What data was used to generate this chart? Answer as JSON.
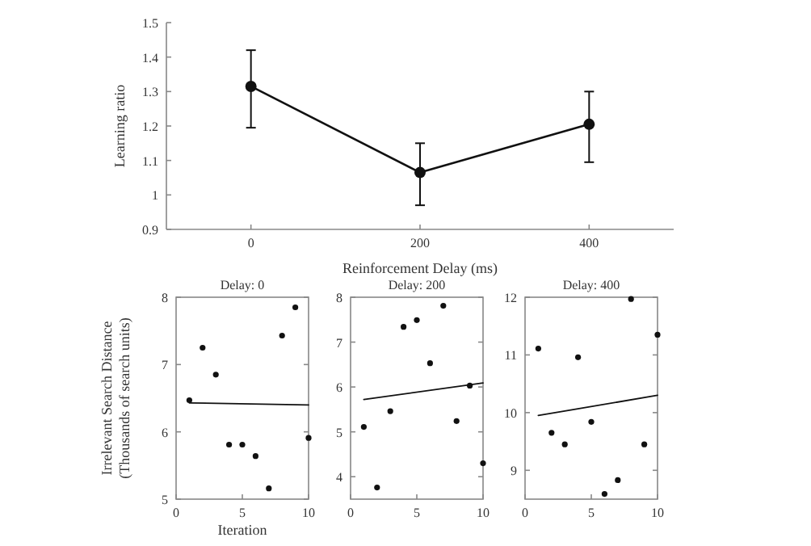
{
  "chart_data": [
    {
      "type": "line",
      "xlabel": "Reinforcement Delay (ms)",
      "ylabel": "Learning ratio",
      "x": [
        0,
        200,
        400
      ],
      "xlim": [
        -100,
        500
      ],
      "xticks": [
        0,
        200,
        400
      ],
      "ylim": [
        0.9,
        1.5
      ],
      "yticks": [
        {
          "value": 0.9,
          "label": "0.9"
        },
        1,
        1.1,
        1.2,
        1.3,
        1.4,
        1.5
      ],
      "marker": "circle",
      "line_style": "solid",
      "series": [
        {
          "color": "#111111",
          "values": [
            1.315,
            1.065,
            1.205
          ],
          "errors": [
            [
              1.195,
              1.42
            ],
            [
              0.97,
              1.15
            ],
            [
              1.095,
              1.3
            ]
          ]
        }
      ]
    },
    {
      "type": "scatter",
      "title": "Delay: 0",
      "xlabel": "Iteration",
      "ylabel": "Irrelevant Search Distance\n(Thousands of search units)",
      "xlim": [
        0,
        10
      ],
      "xticks": [
        0,
        5,
        10
      ],
      "ylim": [
        5,
        8
      ],
      "yticks": [
        5,
        6,
        7,
        8
      ],
      "marker": "circle",
      "series": [
        {
          "color": "#111111",
          "x": [
            1,
            2,
            3,
            4,
            5,
            6,
            7,
            8,
            9,
            10
          ],
          "values": [
            6.47,
            7.25,
            6.85,
            5.81,
            5.81,
            5.64,
            5.16,
            7.43,
            7.85,
            5.91
          ]
        },
        {
          "type": "line",
          "marker": "none",
          "color": "#111111",
          "x": [
            1,
            10
          ],
          "values": [
            6.43,
            6.4
          ]
        }
      ]
    },
    {
      "type": "scatter",
      "title": "Delay: 200",
      "xlim": [
        0,
        10
      ],
      "xticks": [
        0,
        5,
        10
      ],
      "ylim": [
        3.5,
        8
      ],
      "yticks": [
        4,
        5,
        6,
        7,
        8
      ],
      "marker": "circle",
      "series": [
        {
          "color": "#111111",
          "x": [
            1,
            2,
            3,
            4,
            5,
            6,
            7,
            8,
            9,
            10
          ],
          "values": [
            5.11,
            3.76,
            5.46,
            7.34,
            7.49,
            6.53,
            7.81,
            5.24,
            6.03,
            4.3
          ]
        },
        {
          "type": "line",
          "marker": "none",
          "color": "#111111",
          "x": [
            1,
            10
          ],
          "values": [
            5.72,
            6.09
          ]
        }
      ]
    },
    {
      "type": "scatter",
      "title": "Delay: 400",
      "xlim": [
        0,
        10
      ],
      "xticks": [
        0,
        5,
        10
      ],
      "ylim": [
        8.5,
        12
      ],
      "yticks": [
        9,
        10,
        11,
        12
      ],
      "marker": "circle",
      "series": [
        {
          "color": "#111111",
          "x": [
            1,
            2,
            3,
            4,
            5,
            6,
            7,
            8,
            9,
            10
          ],
          "values": [
            11.11,
            9.65,
            9.45,
            10.96,
            9.84,
            8.59,
            8.83,
            11.97,
            9.45,
            11.35
          ]
        },
        {
          "type": "line",
          "marker": "none",
          "color": "#111111",
          "x": [
            1,
            10
          ],
          "values": [
            9.95,
            10.3
          ]
        }
      ]
    }
  ]
}
